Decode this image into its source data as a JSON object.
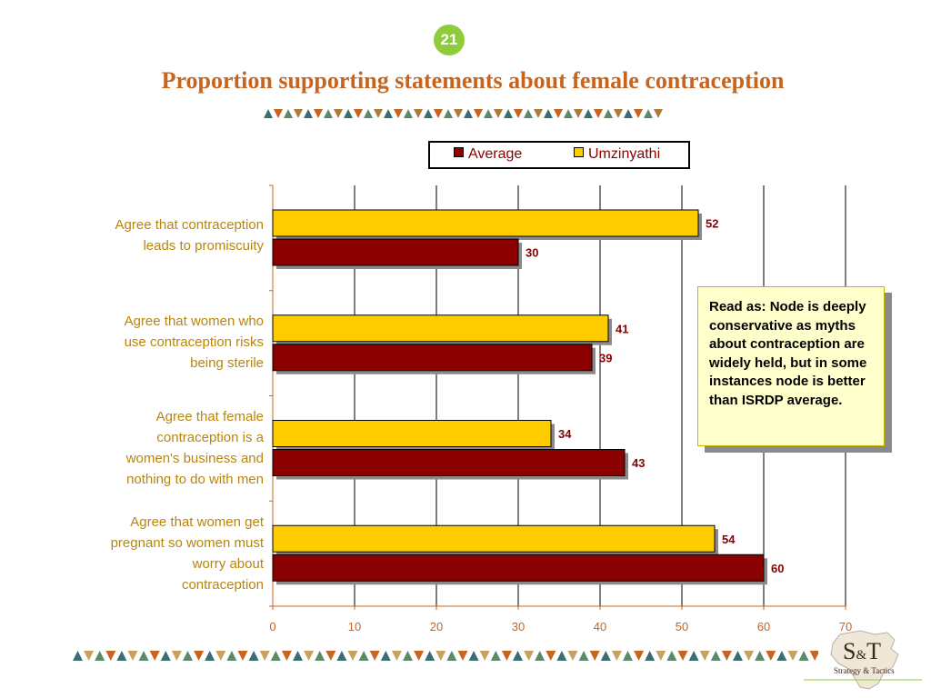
{
  "slide_number": "21",
  "title": "Proportion supporting statements about female contraception",
  "legend": {
    "average_label": "Average",
    "umzinyathi_label": "Umzinyathi"
  },
  "colors": {
    "average": "#8b0000",
    "umzinyathi": "#ffcc00",
    "title": "#c8641e",
    "category_text": "#b8860b",
    "value_text": "#8b0000",
    "note_bg": "#ffffcc"
  },
  "note": {
    "text": "Read as: Node is deeply conservative as myths about contraception are widely held, but in some instances node is better than ISRDP average."
  },
  "logo": {
    "main": "S&T",
    "sub": "Strategy & Tactics"
  },
  "chart_data": {
    "type": "bar",
    "orientation": "horizontal",
    "categories": [
      "Agree that contraception\nleads to promiscuity",
      "Agree that women who\nuse contraception risks\nbeing sterile",
      "Agree that female\ncontraception is a\nwomen's business and\nnothing to do with men",
      "Agree that women get\npregnant so women must\nworry about\ncontraception"
    ],
    "series": [
      {
        "name": "Umzinyathi",
        "values": [
          52,
          41,
          34,
          54
        ]
      },
      {
        "name": "Average",
        "values": [
          30,
          39,
          43,
          60
        ]
      }
    ],
    "xlim": [
      0,
      70
    ],
    "xticks": [
      "0",
      "10",
      "20",
      "30",
      "40",
      "50",
      "60",
      "70"
    ],
    "grid": true,
    "legend_position": "top"
  }
}
